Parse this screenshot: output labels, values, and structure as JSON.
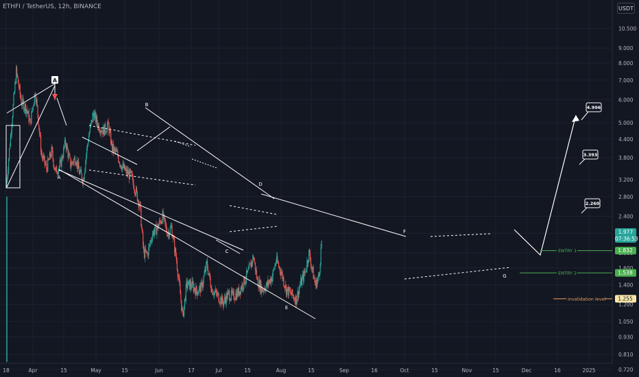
{
  "header": {
    "symbol_text": "ETHFI / TetherUS, 12h, BINANCE",
    "currency_button": "USDT"
  },
  "colors": {
    "background": "#131722",
    "up": "#26a69a",
    "down": "#ef5350",
    "grid": "#1e2230",
    "text": "#b2b5be",
    "annotation": "#ffffff",
    "entry": "#4caf50",
    "invalidation": "#f0a35e"
  },
  "chart_data": {
    "type": "candlestick",
    "title": "ETHFI / TetherUS, 12h, BINANCE",
    "y_scale": "log",
    "y_ticks": [
      "10.500",
      "9.000",
      "8.000",
      "7.000",
      "6.000",
      "5.000",
      "4.400",
      "3.800",
      "3.200",
      "2.800",
      "2.400",
      "2.100",
      "1.800",
      "1.600",
      "1.400",
      "1.200",
      "1.050",
      "0.930",
      "0.810",
      "0.720"
    ],
    "x_ticks": [
      "18",
      "Apr",
      "15",
      "May",
      "15",
      "Jun",
      "17",
      "Jul",
      "15",
      "Aug",
      "15",
      "Sep",
      "16",
      "Oct",
      "15",
      "Nov",
      "15",
      "Dec",
      "16",
      "2025"
    ],
    "price_tags": {
      "last_price": "1.977",
      "countdown": "07:36:53"
    },
    "close_path": [
      [
        "2024-03-18",
        3.0
      ],
      [
        "2024-03-22",
        4.8
      ],
      [
        "2024-03-26",
        7.5
      ],
      [
        "2024-03-30",
        5.9
      ],
      [
        "2024-04-03",
        5.6
      ],
      [
        "2024-04-06",
        5.0
      ],
      [
        "2024-04-10",
        6.4
      ],
      [
        "2024-04-12",
        5.4
      ],
      [
        "2024-04-15",
        3.9
      ],
      [
        "2024-04-19",
        3.5
      ],
      [
        "2024-04-23",
        4.0
      ],
      [
        "2024-04-26",
        3.4
      ],
      [
        "2024-04-30",
        3.6
      ],
      [
        "2024-05-04",
        4.3
      ],
      [
        "2024-05-08",
        3.6
      ],
      [
        "2024-05-12",
        3.8
      ],
      [
        "2024-05-15",
        3.4
      ],
      [
        "2024-05-18",
        3.2
      ],
      [
        "2024-05-22",
        4.4
      ],
      [
        "2024-05-26",
        5.4
      ],
      [
        "2024-05-30",
        4.9
      ],
      [
        "2024-06-03",
        4.7
      ],
      [
        "2024-06-07",
        4.9
      ],
      [
        "2024-06-10",
        4.1
      ],
      [
        "2024-06-14",
        3.9
      ],
      [
        "2024-06-17",
        3.6
      ],
      [
        "2024-06-21",
        3.4
      ],
      [
        "2024-06-25",
        3.3
      ],
      [
        "2024-06-29",
        2.9
      ],
      [
        "2024-07-02",
        2.6
      ],
      [
        "2024-07-05",
        1.8
      ],
      [
        "2024-07-08",
        1.78
      ],
      [
        "2024-07-12",
        2.1
      ],
      [
        "2024-07-16",
        2.2
      ],
      [
        "2024-07-20",
        2.4
      ],
      [
        "2024-07-24",
        2.1
      ],
      [
        "2024-07-27",
        2.2
      ],
      [
        "2024-07-31",
        1.7
      ],
      [
        "2024-08-03",
        1.3
      ],
      [
        "2024-08-05",
        1.09
      ],
      [
        "2024-08-08",
        1.4
      ],
      [
        "2024-08-12",
        1.4
      ],
      [
        "2024-08-16",
        1.33
      ],
      [
        "2024-08-20",
        1.38
      ],
      [
        "2024-08-24",
        1.65
      ],
      [
        "2024-08-28",
        1.35
      ],
      [
        "2024-09-02",
        1.28
      ],
      [
        "2024-09-06",
        1.22
      ],
      [
        "2024-09-10",
        1.3
      ],
      [
        "2024-09-14",
        1.28
      ],
      [
        "2024-09-18",
        1.32
      ],
      [
        "2024-09-22",
        1.42
      ],
      [
        "2024-09-26",
        1.55
      ],
      [
        "2024-09-30",
        1.75
      ],
      [
        "2024-10-03",
        1.45
      ],
      [
        "2024-10-07",
        1.35
      ],
      [
        "2024-10-11",
        1.4
      ],
      [
        "2024-10-15",
        1.5
      ],
      [
        "2024-10-18",
        1.7
      ],
      [
        "2024-10-22",
        1.55
      ],
      [
        "2024-10-26",
        1.35
      ],
      [
        "2024-10-30",
        1.3
      ],
      [
        "2024-11-03",
        1.25
      ],
      [
        "2024-11-06",
        1.4
      ],
      [
        "2024-11-10",
        1.55
      ],
      [
        "2024-11-13",
        1.8
      ],
      [
        "2024-11-16",
        1.55
      ],
      [
        "2024-11-18",
        1.4
      ],
      [
        "2024-11-21",
        1.5
      ],
      [
        "2024-11-23",
        1.97
      ]
    ],
    "annotations": {
      "wave_labels": [
        "A",
        "A",
        "B",
        "C",
        "D",
        "E",
        "F",
        "G"
      ],
      "targets": [
        "4.996",
        "3.393",
        "2.260"
      ],
      "levels": [
        {
          "label": "ENTRY 1",
          "tag": "1.832",
          "value": 1.832
        },
        {
          "label": "ENTRY 2",
          "tag": "1.538",
          "value": 1.538
        },
        {
          "label": "invalidation level",
          "tag": "1.255",
          "value": 1.255
        }
      ]
    }
  }
}
